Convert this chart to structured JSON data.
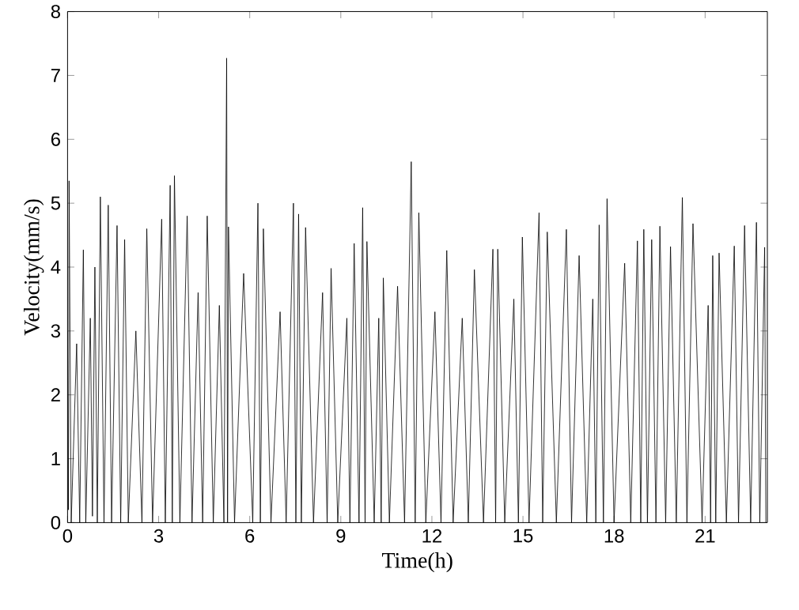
{
  "chart_data": {
    "type": "line",
    "xlabel": "Time(h)",
    "ylabel": "Velocity(mm/s)",
    "xlim": [
      0,
      23.05
    ],
    "ylim": [
      0,
      8
    ],
    "xticks": [
      0,
      3,
      6,
      9,
      12,
      15,
      18,
      21
    ],
    "yticks": [
      0,
      1,
      2,
      3,
      4,
      5,
      6,
      7,
      8
    ],
    "grid": false,
    "marker": "none",
    "line_style": "solid",
    "series": [
      {
        "color": "#000000",
        "x": [
          0,
          0.03,
          0.05,
          0.12,
          0.3,
          0.4,
          0.52,
          0.6,
          0.75,
          0.82,
          0.9,
          0.98,
          1.08,
          1.2,
          1.34,
          1.45,
          1.63,
          1.75,
          1.88,
          2.0,
          2.25,
          2.45,
          2.61,
          2.8,
          3.1,
          3.22,
          3.38,
          3.45,
          3.52,
          3.7,
          3.94,
          4.1,
          4.3,
          4.45,
          4.6,
          4.8,
          5.0,
          5.15,
          5.24,
          5.27,
          5.3,
          5.5,
          5.8,
          6.1,
          6.27,
          6.35,
          6.45,
          6.7,
          7.0,
          7.2,
          7.44,
          7.52,
          7.61,
          7.7,
          7.84,
          8.1,
          8.4,
          8.55,
          8.68,
          8.9,
          9.2,
          9.3,
          9.44,
          9.6,
          9.72,
          9.8,
          9.86,
          10.1,
          10.25,
          10.33,
          10.4,
          10.6,
          10.87,
          11.1,
          11.32,
          11.45,
          11.57,
          11.8,
          12.1,
          12.3,
          12.49,
          12.7,
          13.0,
          13.2,
          13.4,
          13.7,
          14.01,
          14.1,
          14.17,
          14.4,
          14.7,
          14.85,
          14.98,
          15.2,
          15.53,
          15.65,
          15.8,
          16.1,
          16.43,
          16.6,
          16.85,
          17.1,
          17.3,
          17.4,
          17.51,
          17.65,
          17.77,
          18.0,
          18.35,
          18.55,
          18.77,
          18.88,
          18.98,
          19.1,
          19.24,
          19.38,
          19.51,
          19.7,
          19.86,
          20.05,
          20.25,
          20.4,
          20.6,
          20.9,
          21.1,
          21.18,
          21.25,
          21.35,
          21.46,
          21.7,
          21.96,
          22.1,
          22.3,
          22.5,
          22.69,
          22.8,
          22.96,
          23.0
        ],
        "values": [
          3.0,
          0.2,
          5.35,
          0,
          2.8,
          0,
          4.27,
          0,
          3.2,
          0.1,
          4.0,
          0,
          5.1,
          0,
          4.97,
          0,
          4.65,
          0,
          4.43,
          0,
          3.0,
          0,
          4.6,
          0,
          4.75,
          0,
          5.28,
          0,
          5.43,
          0,
          4.8,
          0,
          3.6,
          0,
          4.8,
          0,
          3.4,
          0,
          7.27,
          0,
          4.63,
          0,
          3.9,
          0,
          5.0,
          0,
          4.6,
          0,
          3.3,
          0,
          5.0,
          0,
          4.83,
          0,
          4.62,
          0,
          3.6,
          0,
          3.98,
          0,
          3.2,
          0,
          4.37,
          0,
          4.93,
          0,
          4.4,
          0,
          3.2,
          0,
          3.83,
          0,
          3.7,
          0,
          5.65,
          0,
          4.85,
          0,
          3.3,
          0,
          4.26,
          0,
          3.2,
          0,
          3.96,
          0,
          4.28,
          0,
          4.28,
          0,
          3.5,
          0,
          4.47,
          0,
          4.85,
          0,
          4.55,
          0,
          4.59,
          0,
          4.18,
          0,
          3.5,
          0,
          4.66,
          0,
          5.07,
          0,
          4.06,
          0,
          4.41,
          0,
          4.59,
          0,
          4.43,
          0,
          4.64,
          0,
          4.32,
          0,
          5.09,
          0,
          4.68,
          0,
          3.4,
          0,
          4.18,
          0,
          4.22,
          0,
          4.33,
          0,
          4.65,
          0,
          4.7,
          0,
          4.31,
          0
        ]
      }
    ]
  }
}
